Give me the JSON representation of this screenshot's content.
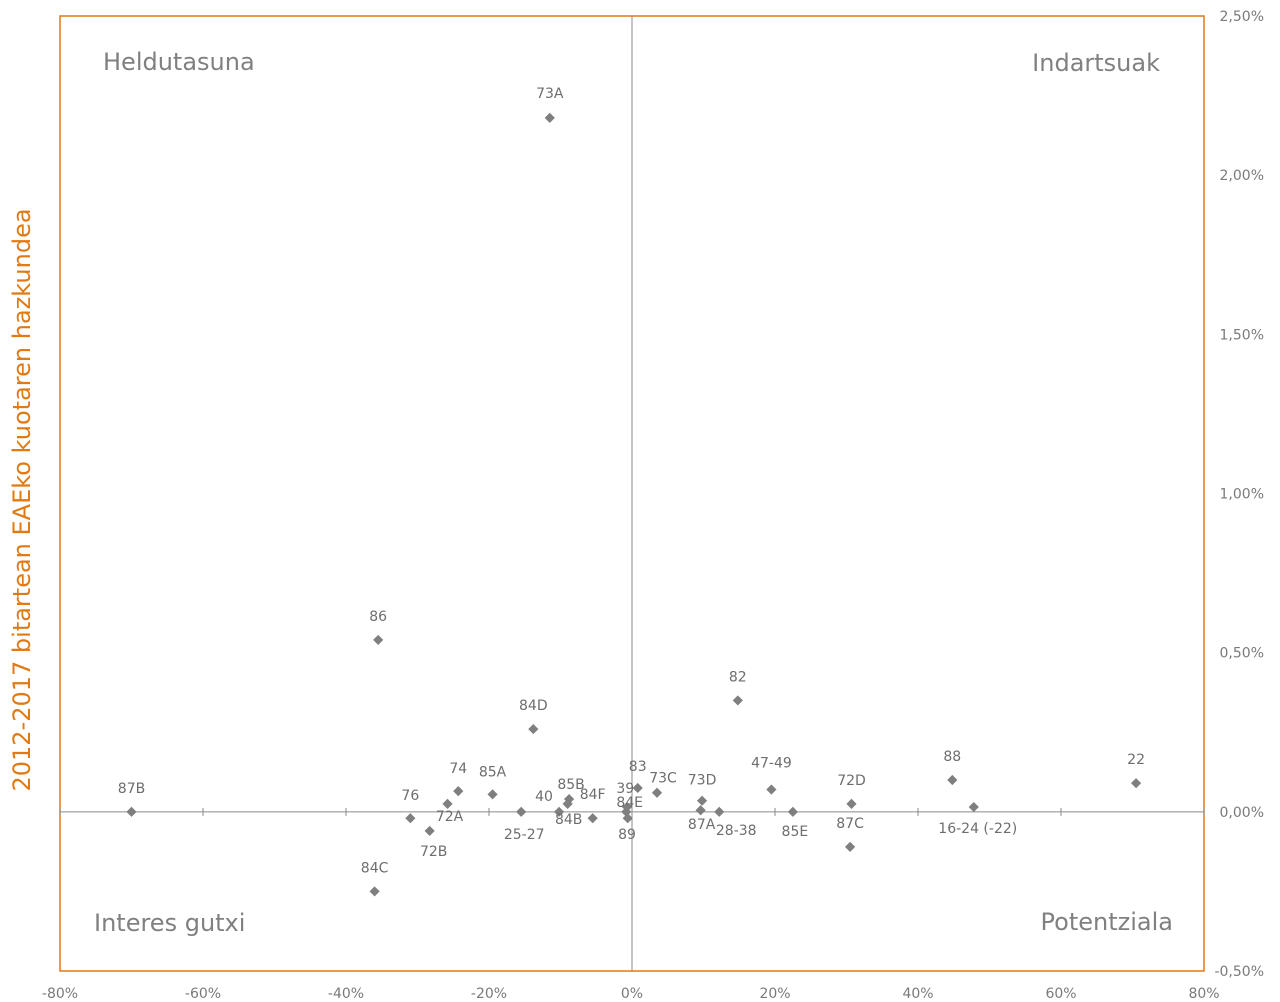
{
  "chart_data": {
    "type": "scatter",
    "ylabel": "2012-2017 bitartean EAEko kuotaren hazkundea",
    "xlim": [
      -0.8,
      0.8
    ],
    "ylim": [
      -0.005,
      0.025
    ],
    "x_ticks": [
      -0.8,
      -0.6,
      -0.4,
      -0.2,
      0,
      0.2,
      0.4,
      0.6,
      0.8
    ],
    "x_tick_labels": [
      "-80%",
      "-60%",
      "-40%",
      "-20%",
      "0%",
      "20%",
      "40%",
      "60%",
      "80%"
    ],
    "y_ticks": [
      -0.005,
      0,
      0.005,
      0.01,
      0.015,
      0.02,
      0.025
    ],
    "y_tick_labels": [
      "-0,50%",
      "0,00%",
      "0,50%",
      "1,00%",
      "1,50%",
      "2,00%",
      "2,50%"
    ],
    "quadrant_labels": {
      "top_left": "Heldutasuna",
      "top_right": "Indartsuak",
      "bottom_left": "Interes gutxi",
      "bottom_right": "Potentziala"
    },
    "marker_color": "#7f7f7f",
    "frame_color": "#e07a14",
    "points": [
      {
        "label": "73A",
        "x": -0.115,
        "y": 0.0218
      },
      {
        "label": "86",
        "x": -0.355,
        "y": 0.0054
      },
      {
        "label": "82",
        "x": 0.148,
        "y": 0.0035
      },
      {
        "label": "84D",
        "x": -0.138,
        "y": 0.0026
      },
      {
        "label": "87B",
        "x": -0.7,
        "y": 0.0
      },
      {
        "label": "76",
        "x": -0.31,
        "y": -0.0002
      },
      {
        "label": "74",
        "x": -0.243,
        "y": 0.00065
      },
      {
        "label": "72A",
        "x": -0.258,
        "y": 0.00025
      },
      {
        "label": "72B",
        "x": -0.283,
        "y": -0.0006
      },
      {
        "label": "85A",
        "x": -0.195,
        "y": 0.00055
      },
      {
        "label": "25-27",
        "x": -0.155,
        "y": 0.0
      },
      {
        "label": "40",
        "x": -0.102,
        "y": 0.0
      },
      {
        "label": "84B",
        "x": -0.09,
        "y": 0.00025
      },
      {
        "label": "85B",
        "x": -0.088,
        "y": 0.0004
      },
      {
        "label": "84F",
        "x": -0.055,
        "y": -0.0002
      },
      {
        "label": "39",
        "x": -0.008,
        "y": 0.0
      },
      {
        "label": "84E",
        "x": -0.006,
        "y": -0.0002
      },
      {
        "label": "89",
        "x": -0.007,
        "y": 0.00015
      },
      {
        "label": "83",
        "x": 0.008,
        "y": 0.00075
      },
      {
        "label": "73C",
        "x": 0.035,
        "y": 0.0006
      },
      {
        "label": "73D",
        "x": 0.098,
        "y": 0.00035
      },
      {
        "label": "87A",
        "x": 0.096,
        "y": 5e-05
      },
      {
        "label": "28-38",
        "x": 0.122,
        "y": 0.0
      },
      {
        "label": "47-49",
        "x": 0.195,
        "y": 0.0007
      },
      {
        "label": "85E",
        "x": 0.225,
        "y": 0.0
      },
      {
        "label": "72D",
        "x": 0.307,
        "y": 0.00025
      },
      {
        "label": "87C",
        "x": 0.305,
        "y": -0.0011
      },
      {
        "label": "88",
        "x": 0.448,
        "y": 0.001
      },
      {
        "label": "16-24 (-22)",
        "x": 0.478,
        "y": 0.00015
      },
      {
        "label": "22",
        "x": 0.705,
        "y": 0.0009
      },
      {
        "label": "84C",
        "x": -0.36,
        "y": -0.0025
      }
    ]
  }
}
